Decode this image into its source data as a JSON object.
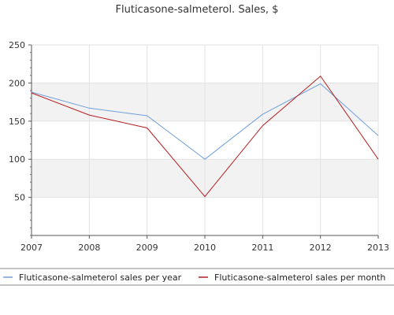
{
  "chart_data": {
    "type": "line",
    "title": "Fluticasone-salmeterol. Sales, $",
    "xlabel": "",
    "ylabel": "",
    "x": [
      "2007",
      "2008",
      "2009",
      "2010",
      "2011",
      "2012",
      "2013"
    ],
    "ylim": [
      0,
      250
    ],
    "yticks": [
      50,
      100,
      150,
      200,
      250
    ],
    "grid": true,
    "legend_position": "bottom",
    "series": [
      {
        "name": "Fluticasone-salmeterol sales per year",
        "color": "#6f9fdc",
        "values": [
          188,
          167,
          157,
          100,
          159,
          199,
          131
        ]
      },
      {
        "name": "Fluticasone-salmeterol sales per month",
        "color": "#b51e1e",
        "values": [
          187,
          158,
          141,
          51,
          144,
          209,
          100
        ]
      }
    ]
  }
}
